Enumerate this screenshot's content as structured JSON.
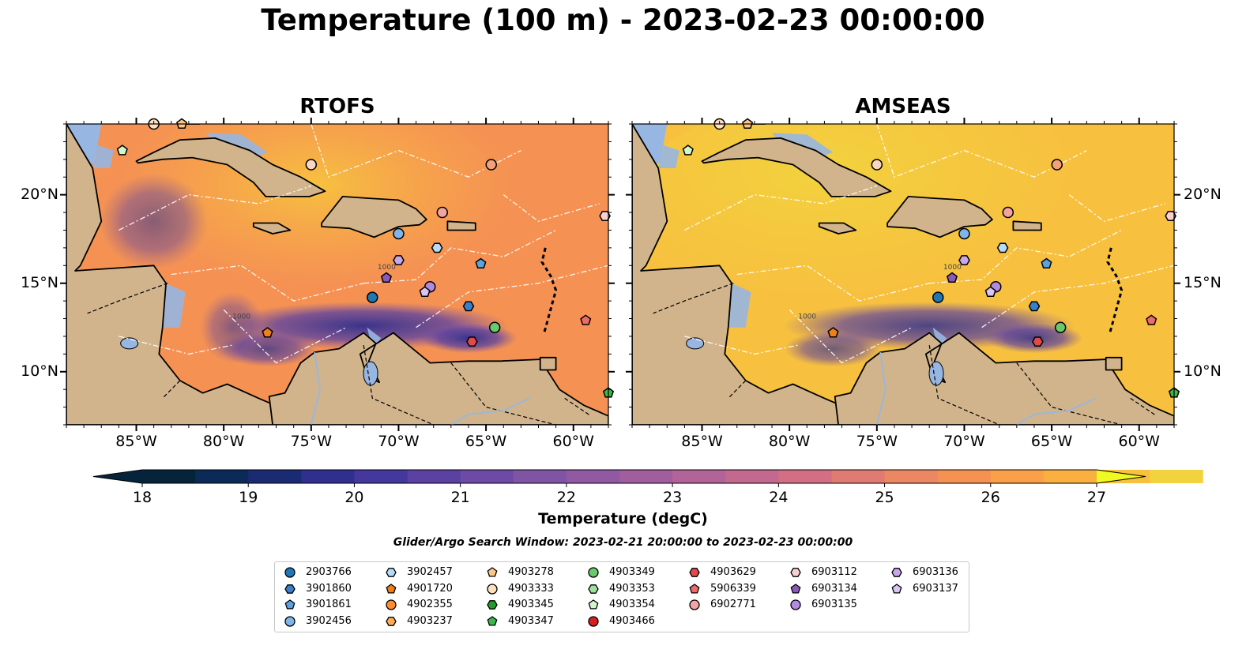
{
  "title": "Temperature (100 m) - 2023-02-23 00:00:00",
  "panels": [
    {
      "title": "RTOFS",
      "model": "rtofs"
    },
    {
      "title": "AMSEAS",
      "model": "amseas"
    }
  ],
  "map": {
    "lon_range": [
      -89,
      -58
    ],
    "lat_range": [
      7,
      24
    ],
    "x_ticks": [
      "85°W",
      "80°W",
      "75°W",
      "70°W",
      "65°W",
      "60°W"
    ],
    "y_ticks": [
      "20°N",
      "15°N",
      "10°N"
    ],
    "land_color": "#d1b48c",
    "ocean_color": "#97b6e1",
    "contour_labels": [
      "1000",
      "1000"
    ]
  },
  "colorbar": {
    "label": "Temperature (degC)",
    "min": 18,
    "max": 27,
    "step": 0.5,
    "ticks": [
      "18",
      "19",
      "20",
      "21",
      "22",
      "23",
      "24",
      "25",
      "26",
      "27"
    ],
    "colors": [
      "#05233a",
      "#0c2a57",
      "#1b2b73",
      "#2f2f8e",
      "#45389c",
      "#5a41a2",
      "#6d4aa5",
      "#7f54a5",
      "#9059a2",
      "#a05e9e",
      "#b26397",
      "#c3688e",
      "#d36f82",
      "#e07b73",
      "#ec8763",
      "#f59253",
      "#f9a048",
      "#fab040",
      "#f7c13f",
      "#f2d23e"
    ],
    "extend_max_color": "#f0f921"
  },
  "search_window": "Glider/Argo Search Window: 2023-02-21 20:00:00 to 2023-02-23 00:00:00",
  "legend": {
    "items": [
      {
        "id": "2903766",
        "marker": "circle",
        "color": "#1f77b4",
        "lon": -71.5,
        "lat": 14.2
      },
      {
        "id": "3901860",
        "marker": "hexagon",
        "color": "#3a7fc8",
        "lon": -66.0,
        "lat": 13.7
      },
      {
        "id": "3901861",
        "marker": "pentagon",
        "color": "#5ba3de",
        "lon": -65.3,
        "lat": 16.1
      },
      {
        "id": "3902456",
        "marker": "circle",
        "color": "#7fb5e8",
        "lon": -70.0,
        "lat": 17.8
      },
      {
        "id": "3902457",
        "marker": "hexagon",
        "color": "#b6dcf5",
        "lon": -67.8,
        "lat": 17.0
      },
      {
        "id": "4901720",
        "marker": "pentagon",
        "color": "#f07f17",
        "lon": -77.5,
        "lat": 12.2
      },
      {
        "id": "4902355",
        "marker": "circle",
        "color": "#ff8c2e",
        "lon": null,
        "lat": null
      },
      {
        "id": "4903237",
        "marker": "hexagon",
        "color": "#ffad5a",
        "lon": null,
        "lat": null
      },
      {
        "id": "4903278",
        "marker": "pentagon",
        "color": "#ffc68a",
        "lon": -82.4,
        "lat": 24.0
      },
      {
        "id": "4903333",
        "marker": "circle",
        "color": "#fde0c0",
        "lon": -84.0,
        "lat": 24.0
      },
      {
        "id": "4903345",
        "marker": "hexagon",
        "color": "#229b2e",
        "lon": null,
        "lat": null
      },
      {
        "id": "4903347",
        "marker": "pentagon",
        "color": "#3cb84a",
        "lon": -58.0,
        "lat": 8.8
      },
      {
        "id": "4903349",
        "marker": "circle",
        "color": "#68c96e",
        "lon": -64.5,
        "lat": 12.5
      },
      {
        "id": "4903353",
        "marker": "hexagon",
        "color": "#9ee39b",
        "lon": null,
        "lat": null
      },
      {
        "id": "4903354",
        "marker": "pentagon",
        "color": "#d2f7cc",
        "lon": -85.8,
        "lat": 22.5
      },
      {
        "id": "4903466",
        "marker": "circle",
        "color": "#d62020",
        "lon": null,
        "lat": null
      },
      {
        "id": "4903629",
        "marker": "hexagon",
        "color": "#e04a4a",
        "lon": -65.8,
        "lat": 11.7
      },
      {
        "id": "5906339",
        "marker": "pentagon",
        "color": "#ee6b6b",
        "lon": -59.3,
        "lat": 12.9
      },
      {
        "id": "6902771",
        "marker": "circle",
        "color": "#f4a3a3",
        "lon": -67.5,
        "lat": 19.0
      },
      {
        "id": "6903112",
        "marker": "hexagon",
        "color": "#f9cfcf",
        "lon": -58.2,
        "lat": 18.8
      },
      {
        "id": "6903134",
        "marker": "pentagon",
        "color": "#8a5ab8",
        "lon": -70.7,
        "lat": 15.3
      },
      {
        "id": "6903135",
        "marker": "circle",
        "color": "#b28ae0",
        "lon": -68.2,
        "lat": 14.8
      },
      {
        "id": "6903136",
        "marker": "hexagon",
        "color": "#c8a6eb",
        "lon": -70.0,
        "lat": 16.3
      },
      {
        "id": "6903137",
        "marker": "pentagon",
        "color": "#dac4f3",
        "lon": -68.5,
        "lat": 14.5
      }
    ],
    "extra_markers": [
      {
        "color": "#f9d7c2",
        "marker": "circle",
        "lon": -75.0,
        "lat": 21.7
      },
      {
        "color": "#f4a07a",
        "marker": "circle",
        "lon": -64.7,
        "lat": 21.7
      }
    ]
  }
}
